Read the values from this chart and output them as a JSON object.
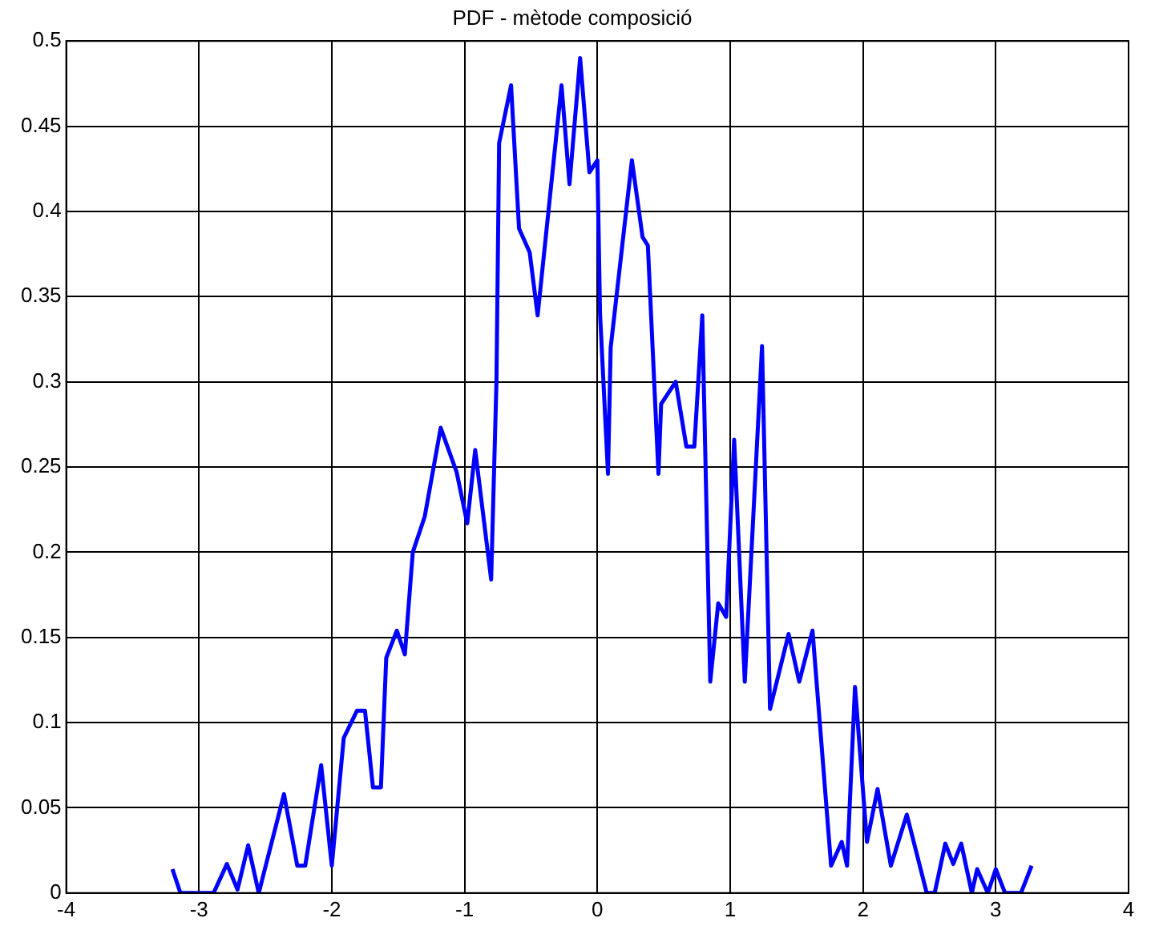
{
  "chart_data": {
    "type": "line",
    "title": "PDF - mètode composició",
    "x": [
      -3.2,
      -3.14,
      -2.89,
      -2.79,
      -2.71,
      -2.63,
      -2.55,
      -2.36,
      -2.26,
      -2.2,
      -2.08,
      -2.0,
      -1.91,
      -1.81,
      -1.75,
      -1.69,
      -1.63,
      -1.59,
      -1.51,
      -1.45,
      -1.39,
      -1.3,
      -1.18,
      -1.06,
      -0.98,
      -0.92,
      -0.8,
      -0.76,
      -0.74,
      -0.65,
      -0.59,
      -0.51,
      -0.45,
      -0.27,
      -0.21,
      -0.13,
      -0.06,
      0.0,
      0.02,
      0.08,
      0.1,
      0.26,
      0.34,
      0.38,
      0.46,
      0.48,
      0.59,
      0.67,
      0.73,
      0.79,
      0.85,
      0.91,
      0.97,
      1.03,
      1.11,
      1.24,
      1.3,
      1.44,
      1.52,
      1.62,
      1.76,
      1.84,
      1.88,
      1.94,
      2.03,
      2.11,
      2.21,
      2.33,
      2.48,
      2.54,
      2.62,
      2.68,
      2.74,
      2.82,
      2.86,
      2.94,
      3.0,
      3.07,
      3.19,
      3.27
    ],
    "series": [
      {
        "color": "#0000ff",
        "values": [
          0.014,
          0,
          0,
          0.017,
          0.002,
          0.028,
          0,
          0.058,
          0.016,
          0.016,
          0.075,
          0.016,
          0.091,
          0.107,
          0.107,
          0.062,
          0.062,
          0.138,
          0.154,
          0.14,
          0.2,
          0.221,
          0.273,
          0.247,
          0.217,
          0.26,
          0.184,
          0.3,
          0.44,
          0.474,
          0.39,
          0.376,
          0.339,
          0.474,
          0.416,
          0.49,
          0.423,
          0.43,
          0.34,
          0.246,
          0.32,
          0.43,
          0.385,
          0.38,
          0.246,
          0.287,
          0.3,
          0.262,
          0.262,
          0.339,
          0.124,
          0.17,
          0.162,
          0.266,
          0.124,
          0.321,
          0.108,
          0.152,
          0.124,
          0.154,
          0.016,
          0.03,
          0.016,
          0.121,
          0.03,
          0.061,
          0.016,
          0.046,
          0,
          0,
          0.029,
          0.017,
          0.029,
          0,
          0.014,
          0,
          0.014,
          0,
          0,
          0.016
        ]
      }
    ],
    "xlim": [
      -4,
      4
    ],
    "xticks": [
      -4,
      -3,
      -2,
      -1,
      0,
      1,
      2,
      3,
      4
    ],
    "ylim": [
      0,
      0.5
    ],
    "yticks": [
      0,
      0.05,
      0.1,
      0.15,
      0.2,
      0.25,
      0.3,
      0.35,
      0.4,
      0.45,
      0.5
    ],
    "grid": true,
    "marker": "none",
    "line_style": "solid"
  }
}
